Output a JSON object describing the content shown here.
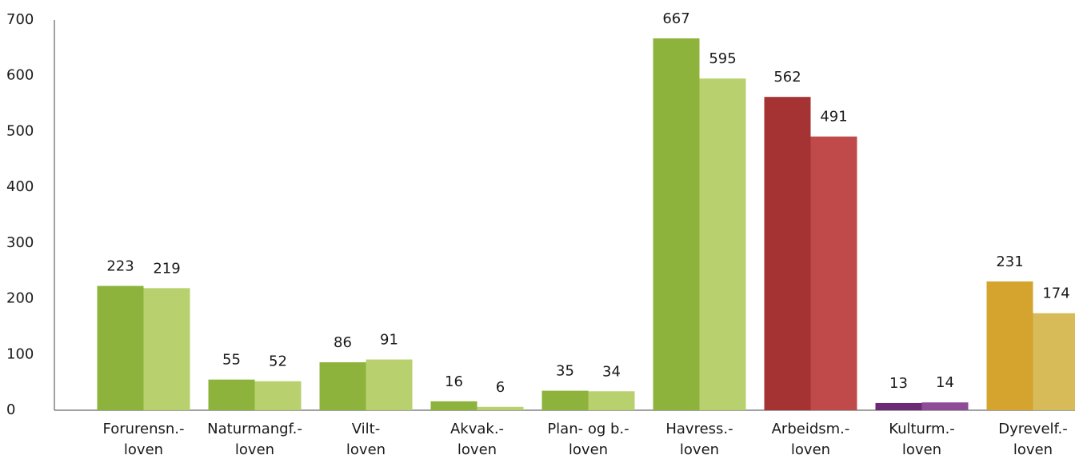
{
  "chart_data": {
    "type": "bar",
    "categories": [
      [
        "Forurensn.-",
        "loven"
      ],
      [
        "Naturmangf.-",
        "loven"
      ],
      [
        "Vilt-",
        "loven"
      ],
      [
        "Akvak.-",
        "loven"
      ],
      [
        "Plan- og b.-",
        "loven"
      ],
      [
        "Havress.-",
        "loven"
      ],
      [
        "Arbeidsm.-",
        "loven"
      ],
      [
        "Kulturm.-",
        "loven"
      ],
      [
        "Dyrevelf.-",
        "loven"
      ]
    ],
    "series": [
      {
        "colors": [
          "#8db33c",
          "#8db33c",
          "#8db33c",
          "#8db33c",
          "#8db33c",
          "#8db33c",
          "#a63333",
          "#6c2a74",
          "#d4a42f"
        ],
        "values": [
          223,
          55,
          86,
          16,
          35,
          667,
          562,
          13,
          231
        ]
      },
      {
        "colors": [
          "#b8d16e",
          "#b8d16e",
          "#b8d16e",
          "#b8d16e",
          "#b8d16e",
          "#b8d16e",
          "#c04a4a",
          "#8e4b96",
          "#d6bb58"
        ],
        "values": [
          219,
          52,
          91,
          6,
          34,
          595,
          491,
          14,
          174
        ]
      }
    ],
    "ylim": [
      0,
      700
    ],
    "yticks": [
      0,
      100,
      200,
      300,
      400,
      500,
      600,
      700
    ],
    "grid": false
  }
}
